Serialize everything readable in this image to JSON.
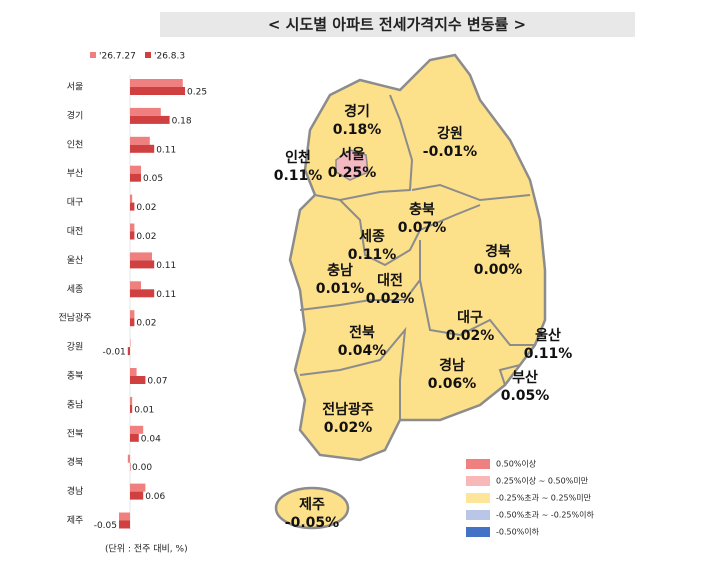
{
  "title": "< 시도별 아파트 전세가격지수 변동률 >",
  "chart_data": {
    "type": "bar",
    "orientation": "horizontal",
    "categories": [
      "서울",
      "경기",
      "인천",
      "부산",
      "대구",
      "대전",
      "울산",
      "세종",
      "전남광주",
      "강원",
      "충북",
      "충남",
      "전북",
      "경북",
      "경남",
      "제주"
    ],
    "series": [
      {
        "name": "'26.7.27",
        "color": "#f08080",
        "values": [
          0.24,
          0.14,
          0.09,
          0.05,
          0.01,
          0.02,
          0.1,
          0.05,
          0.02,
          0.0,
          0.03,
          0.01,
          0.06,
          -0.01,
          0.07,
          -0.05
        ]
      },
      {
        "name": "'26.8.3",
        "color": "#d04040",
        "values": [
          0.25,
          0.18,
          0.11,
          0.05,
          0.02,
          0.02,
          0.11,
          0.11,
          0.02,
          -0.01,
          0.07,
          0.01,
          0.04,
          0.0,
          0.06,
          -0.05
        ],
        "value_labels": [
          "0.25",
          "0.18",
          "0.11",
          "0.05",
          "0.02",
          "0.02",
          "0.11",
          "0.11",
          "0.02",
          "-0.01",
          "0.07",
          "0.01",
          "0.04",
          "0.00",
          "0.06",
          "-0.05"
        ]
      }
    ],
    "note": "(단위 : 전주 대비, %)"
  },
  "map": {
    "regions": [
      {
        "name": "경기",
        "value": "0.18%"
      },
      {
        "name": "강원",
        "value": "-0.01%"
      },
      {
        "name": "인천",
        "value": "0.11%"
      },
      {
        "name": "서울",
        "value": "0.25%"
      },
      {
        "name": "충북",
        "value": "0.07%"
      },
      {
        "name": "세종",
        "value": "0.11%"
      },
      {
        "name": "경북",
        "value": "0.00%"
      },
      {
        "name": "충남",
        "value": "0.01%"
      },
      {
        "name": "대전",
        "value": "0.02%"
      },
      {
        "name": "대구",
        "value": "0.02%"
      },
      {
        "name": "울산",
        "value": "0.11%"
      },
      {
        "name": "전북",
        "value": "0.04%"
      },
      {
        "name": "경남",
        "value": "0.06%"
      },
      {
        "name": "부산",
        "value": "0.05%"
      },
      {
        "name": "전남광주",
        "value": "0.02%"
      },
      {
        "name": "제주",
        "value": "-0.05%"
      }
    ],
    "legend": [
      {
        "label": "0.50%이상",
        "color": "#f08080"
      },
      {
        "label": "0.25%이상 ~ 0.50%미만",
        "color": "#f8b8b8"
      },
      {
        "label": "-0.25%초과 ~ 0.25%미만",
        "color": "#fde69a"
      },
      {
        "label": "-0.50%초과 ~ -0.25%이하",
        "color": "#b9c6e8"
      },
      {
        "label": "-0.50%이하",
        "color": "#4472c4"
      }
    ]
  }
}
